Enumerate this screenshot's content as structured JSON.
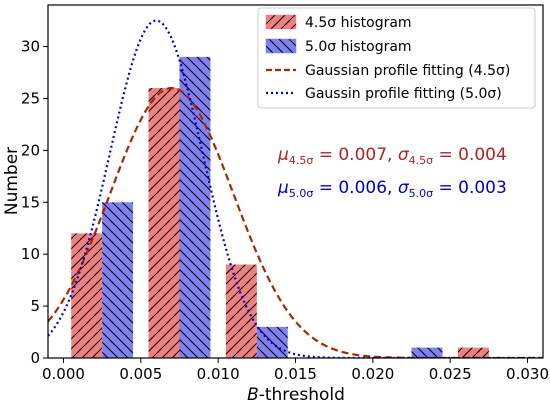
{
  "chart_data": {
    "type": "bar",
    "xlabel_prefix": "B",
    "xlabel_suffix": "-threshold",
    "ylabel": "Number",
    "xlim": [
      -0.001,
      0.031
    ],
    "ylim": [
      0,
      34
    ],
    "x_ticks": [
      0.0,
      0.005,
      0.01,
      0.015,
      0.02,
      0.025,
      0.03
    ],
    "x_tick_labels": [
      "0.000",
      "0.005",
      "0.010",
      "0.015",
      "0.020",
      "0.025",
      "0.030"
    ],
    "y_ticks": [
      0,
      5,
      10,
      15,
      20,
      25,
      30
    ],
    "y_tick_labels": [
      "0",
      "5",
      "10",
      "15",
      "20",
      "25",
      "30"
    ],
    "bar_width": 0.002,
    "series": [
      {
        "name": "4.5σ histogram",
        "type": "bar",
        "color": "#f08080",
        "x": [
          0.0015,
          0.0065,
          0.0115,
          0.0165,
          0.0215,
          0.0265
        ],
        "values": [
          12,
          26,
          9,
          0,
          0,
          1
        ]
      },
      {
        "name": "5.0σ histogram",
        "type": "bar",
        "color": "#8080f0",
        "x": [
          0.0035,
          0.0085,
          0.0135,
          0.0185,
          0.0235,
          0.0285
        ],
        "values": [
          15,
          29,
          3,
          0,
          1,
          0
        ]
      },
      {
        "name": "Gaussian profile fitting (4.5σ)",
        "type": "line",
        "style": "dashed",
        "color": "#a52a00",
        "mu": 0.007,
        "sigma": 0.004,
        "peak": 26.0
      },
      {
        "name": "Gaussin profile fitting (5.0σ)",
        "type": "line",
        "style": "dotted",
        "color": "#0000cc",
        "mu": 0.006,
        "sigma": 0.003,
        "peak": 32.5
      }
    ],
    "legend_placement": "top-right",
    "annotations": [
      {
        "mu_label": "μ",
        "mu_sub": "4.5σ",
        "mu_value": "0.007",
        "sigma_label": "σ",
        "sigma_sub": "4.5σ",
        "sigma_value": "0.004",
        "color": "#b22222"
      },
      {
        "mu_label": "μ",
        "mu_sub": "5.0σ",
        "mu_value": "0.006",
        "sigma_label": "σ",
        "sigma_sub": "5.0σ",
        "sigma_value": "0.003",
        "color": "#0000cc"
      }
    ],
    "grid": false
  }
}
